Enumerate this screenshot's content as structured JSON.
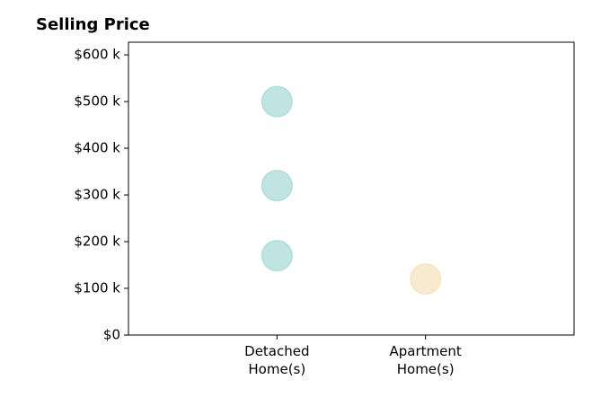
{
  "chart_data": {
    "type": "scatter",
    "title": "Selling Price",
    "x": [
      0,
      0,
      0,
      1
    ],
    "values": [
      500,
      320,
      170,
      120
    ],
    "colors": [
      "#5fbcb3",
      "#5fbcb3",
      "#5fbcb3",
      "#eecb87"
    ],
    "xlim": [
      -1,
      2
    ],
    "xticks": [
      {
        "value": 0,
        "label": "Detached\nHome(s)"
      },
      {
        "value": 1,
        "label": "Apartment\nHome(s)"
      }
    ],
    "ylim": [
      0,
      627
    ],
    "yticks": [
      {
        "value": 0,
        "label": "$0"
      },
      {
        "value": 100,
        "label": "$100 k"
      },
      {
        "value": 200,
        "label": "$200 k"
      },
      {
        "value": 300,
        "label": "$300 k"
      },
      {
        "value": 400,
        "label": "$400 k"
      },
      {
        "value": 500,
        "label": "$500 k"
      },
      {
        "value": 600,
        "label": "$600 k"
      }
    ],
    "grid": false
  }
}
